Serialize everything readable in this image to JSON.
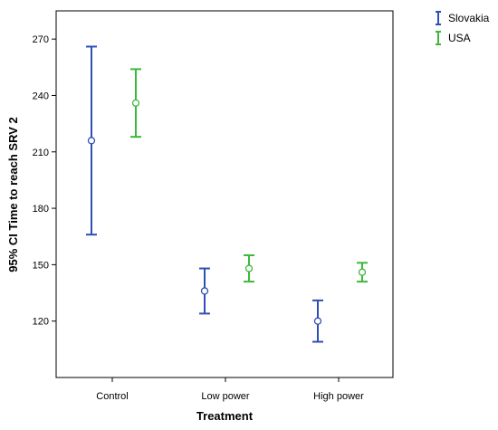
{
  "chart_data": {
    "type": "errorbar",
    "xlabel": "Treatment",
    "ylabel": "95% CI Time to reach SRV 2",
    "categories": [
      "Control",
      "Low power",
      "High power"
    ],
    "yticks": [
      120,
      150,
      180,
      210,
      240,
      270
    ],
    "ylim": [
      90,
      285
    ],
    "grid": false,
    "legend_position": "top-right, outside plot",
    "series": [
      {
        "name": "Slovakia",
        "color": "#2f4fb4",
        "marker": "open-circle",
        "points": [
          {
            "category": "Control",
            "mean": 216,
            "lower": 166,
            "upper": 266
          },
          {
            "category": "Low power",
            "mean": 136,
            "lower": 124,
            "upper": 148
          },
          {
            "category": "High power",
            "mean": 120,
            "lower": 109,
            "upper": 131
          }
        ]
      },
      {
        "name": "USA",
        "color": "#3cb83c",
        "marker": "open-circle",
        "points": [
          {
            "category": "Control",
            "mean": 236,
            "lower": 218,
            "upper": 254
          },
          {
            "category": "Low power",
            "mean": 148,
            "lower": 141,
            "upper": 155
          },
          {
            "category": "High power",
            "mean": 146,
            "lower": 141,
            "upper": 151
          }
        ]
      }
    ]
  }
}
